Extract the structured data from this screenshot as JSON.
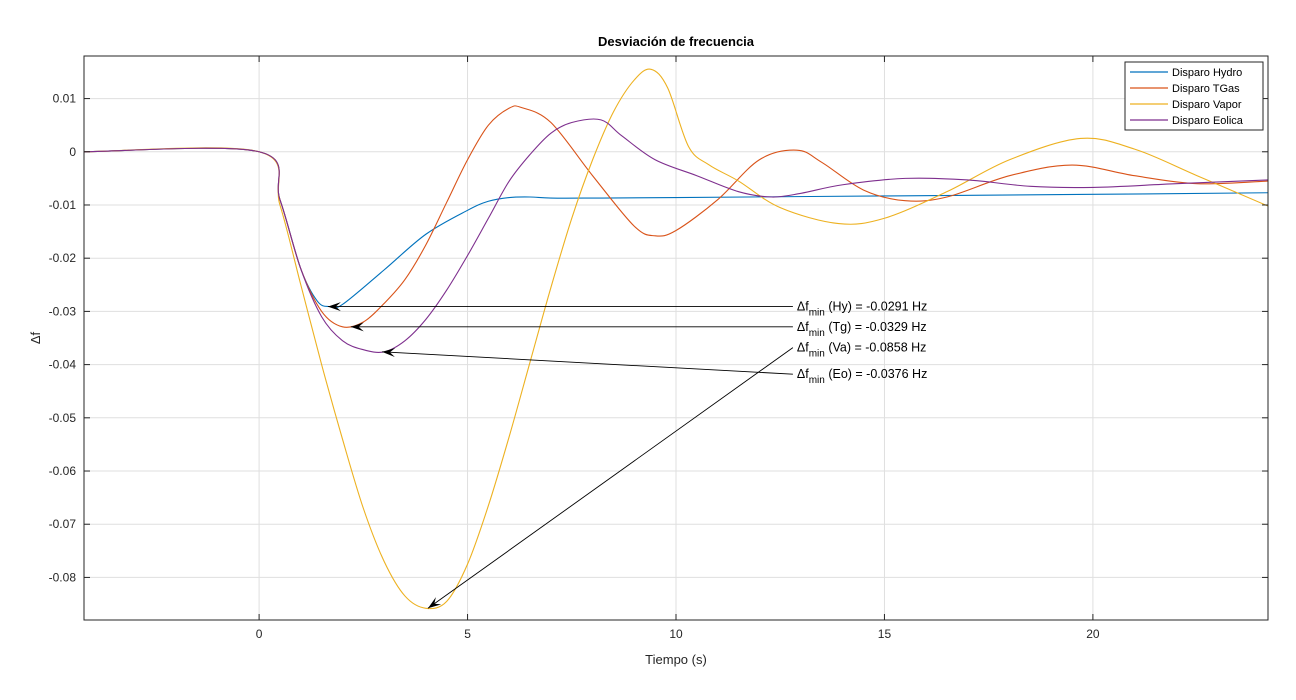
{
  "chart_data": {
    "type": "line",
    "title": "Desviación de frecuencia",
    "xlabel": "Tiempo (s)",
    "ylabel": "Δf",
    "xlim": [
      -4.2,
      24.2
    ],
    "ylim": [
      -0.088,
      0.018
    ],
    "x_ticks": [
      0,
      5,
      10,
      15,
      20
    ],
    "x_tick_labels": [
      "0",
      "5",
      "10",
      "15",
      "20"
    ],
    "y_ticks": [
      0.01,
      0,
      -0.01,
      -0.02,
      -0.03,
      -0.04,
      -0.05,
      -0.06,
      -0.07,
      -0.08
    ],
    "y_tick_labels": [
      "0.01",
      "0",
      "-0.01",
      "-0.02",
      "-0.03",
      "-0.04",
      "-0.05",
      "-0.06",
      "-0.07",
      "-0.08"
    ],
    "grid": true,
    "legend_position": "top-right",
    "series": [
      {
        "name": "Disparo Hydro",
        "color": "#0072BD",
        "points": [
          [
            -4.2,
            0
          ],
          [
            0,
            0
          ],
          [
            0.5,
            -0.009
          ],
          [
            1,
            -0.022
          ],
          [
            1.4,
            -0.0281
          ],
          [
            1.7,
            -0.0291
          ],
          [
            2,
            -0.0287
          ],
          [
            3,
            -0.0222
          ],
          [
            4,
            -0.0155
          ],
          [
            5,
            -0.011
          ],
          [
            5.5,
            -0.0093
          ],
          [
            6,
            -0.0086
          ],
          [
            6.5,
            -0.0085
          ],
          [
            7,
            -0.0087
          ],
          [
            8,
            -0.0087
          ],
          [
            10,
            -0.0086
          ],
          [
            15,
            -0.0083
          ],
          [
            20,
            -0.008
          ],
          [
            24.2,
            -0.0077
          ]
        ]
      },
      {
        "name": "Disparo TGas",
        "color": "#D95319",
        "points": [
          [
            -4.2,
            0
          ],
          [
            0,
            0
          ],
          [
            0.5,
            -0.009
          ],
          [
            1,
            -0.022
          ],
          [
            1.5,
            -0.03
          ],
          [
            2,
            -0.0329
          ],
          [
            2.5,
            -0.032
          ],
          [
            3,
            -0.0285
          ],
          [
            3.5,
            -0.024
          ],
          [
            4,
            -0.0175
          ],
          [
            4.5,
            -0.0095
          ],
          [
            5,
            -0.0015
          ],
          [
            5.5,
            0.005
          ],
          [
            6,
            0.0082
          ],
          [
            6.3,
            0.0083
          ],
          [
            7,
            0.0055
          ],
          [
            8,
            -0.0045
          ],
          [
            9,
            -0.014
          ],
          [
            9.5,
            -0.0158
          ],
          [
            10,
            -0.0148
          ],
          [
            11,
            -0.009
          ],
          [
            12,
            -0.0015
          ],
          [
            12.9,
            0.0003
          ],
          [
            13.5,
            -0.002
          ],
          [
            14.5,
            -0.0072
          ],
          [
            15.5,
            -0.0092
          ],
          [
            16.5,
            -0.0085
          ],
          [
            18,
            -0.0045
          ],
          [
            19.5,
            -0.0025
          ],
          [
            21,
            -0.0045
          ],
          [
            22.5,
            -0.006
          ],
          [
            24.2,
            -0.0055
          ]
        ]
      },
      {
        "name": "Disparo Vapor",
        "color": "#EDB120",
        "points": [
          [
            -4.2,
            0
          ],
          [
            0,
            0
          ],
          [
            0.5,
            -0.01
          ],
          [
            1,
            -0.025
          ],
          [
            1.5,
            -0.04
          ],
          [
            2,
            -0.054
          ],
          [
            2.5,
            -0.067
          ],
          [
            3,
            -0.077
          ],
          [
            3.5,
            -0.0835
          ],
          [
            4,
            -0.0858
          ],
          [
            4.5,
            -0.0845
          ],
          [
            5,
            -0.0775
          ],
          [
            5.5,
            -0.0665
          ],
          [
            6,
            -0.0535
          ],
          [
            6.5,
            -0.0395
          ],
          [
            7,
            -0.0255
          ],
          [
            7.5,
            -0.0125
          ],
          [
            8,
            -0.0015
          ],
          [
            8.5,
            0.0075
          ],
          [
            9,
            0.0135
          ],
          [
            9.4,
            0.0155
          ],
          [
            9.8,
            0.012
          ],
          [
            10.3,
            0.001
          ],
          [
            10.8,
            -0.0025
          ],
          [
            11.5,
            -0.0055
          ],
          [
            12.5,
            -0.0105
          ],
          [
            13.9,
            -0.0135
          ],
          [
            15,
            -0.0125
          ],
          [
            16.5,
            -0.0075
          ],
          [
            18,
            -0.0015
          ],
          [
            19.7,
            0.0025
          ],
          [
            21,
            0.0005
          ],
          [
            22.5,
            -0.0045
          ],
          [
            24.2,
            -0.0102
          ]
        ]
      },
      {
        "name": "Disparo Eolica",
        "color": "#7E2F8E",
        "points": [
          [
            -4.2,
            0
          ],
          [
            0,
            0
          ],
          [
            0.5,
            -0.009
          ],
          [
            1,
            -0.022
          ],
          [
            1.5,
            -0.031
          ],
          [
            2,
            -0.0355
          ],
          [
            2.5,
            -0.0372
          ],
          [
            3,
            -0.0376
          ],
          [
            3.5,
            -0.0355
          ],
          [
            4,
            -0.0315
          ],
          [
            4.5,
            -0.026
          ],
          [
            5,
            -0.0195
          ],
          [
            5.5,
            -0.0125
          ],
          [
            6,
            -0.0055
          ],
          [
            6.5,
            -0.0005
          ],
          [
            7,
            0.0035
          ],
          [
            7.5,
            0.0055
          ],
          [
            8.2,
            0.006
          ],
          [
            8.7,
            0.003
          ],
          [
            9.5,
            -0.0015
          ],
          [
            10.5,
            -0.0045
          ],
          [
            11.5,
            -0.0075
          ],
          [
            12.3,
            -0.0085
          ],
          [
            13,
            -0.0078
          ],
          [
            14,
            -0.0062
          ],
          [
            15.5,
            -0.005
          ],
          [
            17,
            -0.0053
          ],
          [
            18.5,
            -0.0065
          ],
          [
            20,
            -0.0067
          ],
          [
            22,
            -0.006
          ],
          [
            24.2,
            -0.0053
          ]
        ]
      }
    ],
    "annotations": [
      {
        "main": "Δf",
        "sub": "min",
        "rest": " (Hy) = -0.0291 Hz",
        "text_at": [
          12.9,
          -0.0291
        ],
        "arrow_to": [
          1.65,
          -0.0291
        ]
      },
      {
        "main": "Δf",
        "sub": "min",
        "rest": " (Tg) = -0.0329 Hz",
        "text_at": [
          12.9,
          -0.0329
        ],
        "arrow_to": [
          2.2,
          -0.0329
        ]
      },
      {
        "main": "Δf",
        "sub": "min",
        "rest": " (Va) = -0.0858 Hz",
        "text_at": [
          12.9,
          -0.0368
        ],
        "arrow_to": [
          4.05,
          -0.0858
        ]
      },
      {
        "main": "Δf",
        "sub": "min",
        "rest": " (Eo) = -0.0376 Hz",
        "text_at": [
          12.9,
          -0.0418
        ],
        "arrow_to": [
          2.95,
          -0.0376
        ]
      }
    ]
  }
}
